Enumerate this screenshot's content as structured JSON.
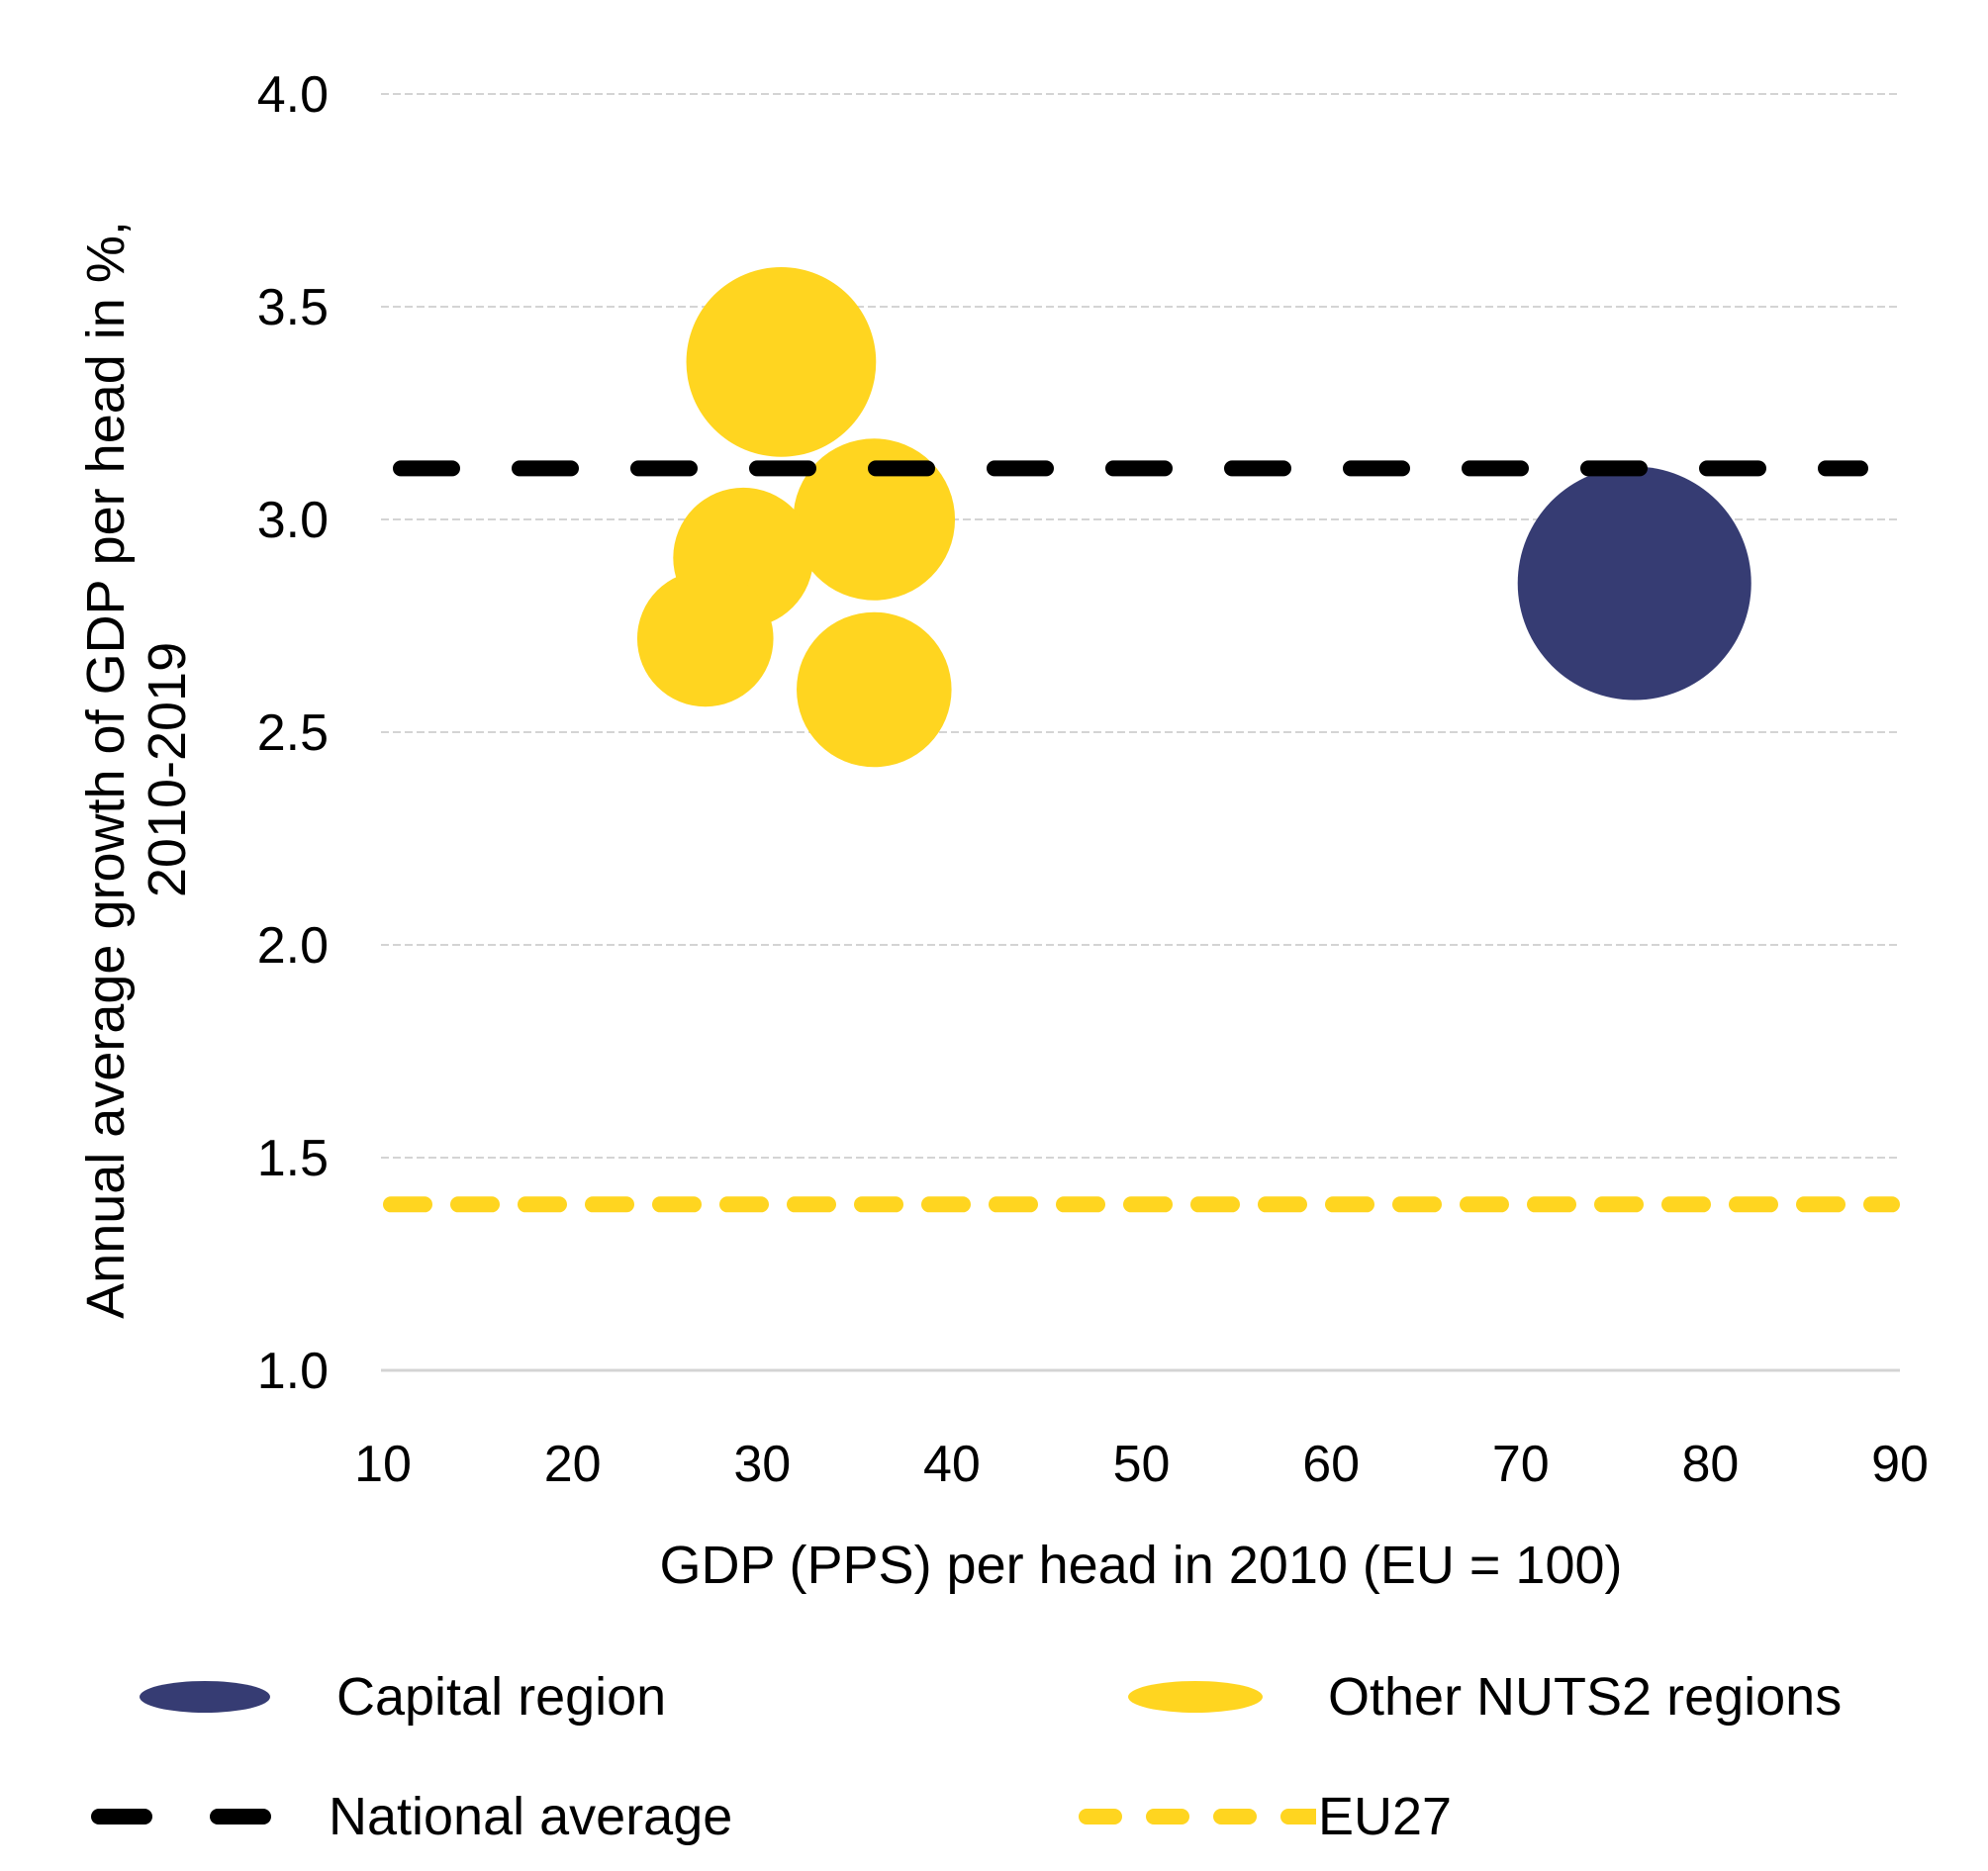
{
  "chart_data": {
    "type": "scatter",
    "subtype": "bubble",
    "title": "",
    "xlabel": "GDP (PPS) per head in 2010 (EU = 100)",
    "ylabel_lines": [
      "Annual average growth of GDP per head in %,",
      "2010-2019"
    ],
    "xlim": [
      10,
      90
    ],
    "ylim": [
      1.0,
      4.0
    ],
    "x_ticks": [
      10,
      20,
      30,
      40,
      50,
      60,
      70,
      80,
      90
    ],
    "x_tick_labels": [
      "10",
      "20",
      "30",
      "40",
      "50",
      "60",
      "70",
      "80",
      "90"
    ],
    "y_ticks": [
      1.0,
      1.5,
      2.0,
      2.5,
      3.0,
      3.5,
      4.0
    ],
    "y_tick_labels": [
      "1.0",
      "1.5",
      "2.0",
      "2.5",
      "3.0",
      "3.5",
      "4.0"
    ],
    "grid": "horizontal-dashed",
    "legend_position": "bottom",
    "series": [
      {
        "name": "Capital region",
        "color": "#363C73",
        "points": [
          {
            "x": 76.0,
            "y": 2.85,
            "size": 1.0
          }
        ]
      },
      {
        "name": "Other NUTS2 regions",
        "color": "#FFD520",
        "points": [
          {
            "x": 31.0,
            "y": 3.37,
            "size": 0.66
          },
          {
            "x": 35.9,
            "y": 3.0,
            "size": 0.48
          },
          {
            "x": 29.0,
            "y": 2.91,
            "size": 0.36
          },
          {
            "x": 27.0,
            "y": 2.72,
            "size": 0.34
          },
          {
            "x": 35.9,
            "y": 2.6,
            "size": 0.44
          }
        ]
      }
    ],
    "reference_lines": [
      {
        "name": "National average",
        "y": 3.12,
        "color": "#000000",
        "style": "dashed"
      },
      {
        "name": "EU27",
        "y": 1.39,
        "color": "#FFD520",
        "style": "dashed"
      }
    ]
  },
  "legend": {
    "items": [
      {
        "label": "Capital region",
        "kind": "bubble",
        "color": "#363C73"
      },
      {
        "label": "Other NUTS2 regions",
        "kind": "bubble",
        "color": "#FFD520"
      },
      {
        "label": "National average",
        "kind": "line",
        "color": "#000000"
      },
      {
        "label": "EU27",
        "kind": "line",
        "color": "#FFD520"
      }
    ]
  }
}
